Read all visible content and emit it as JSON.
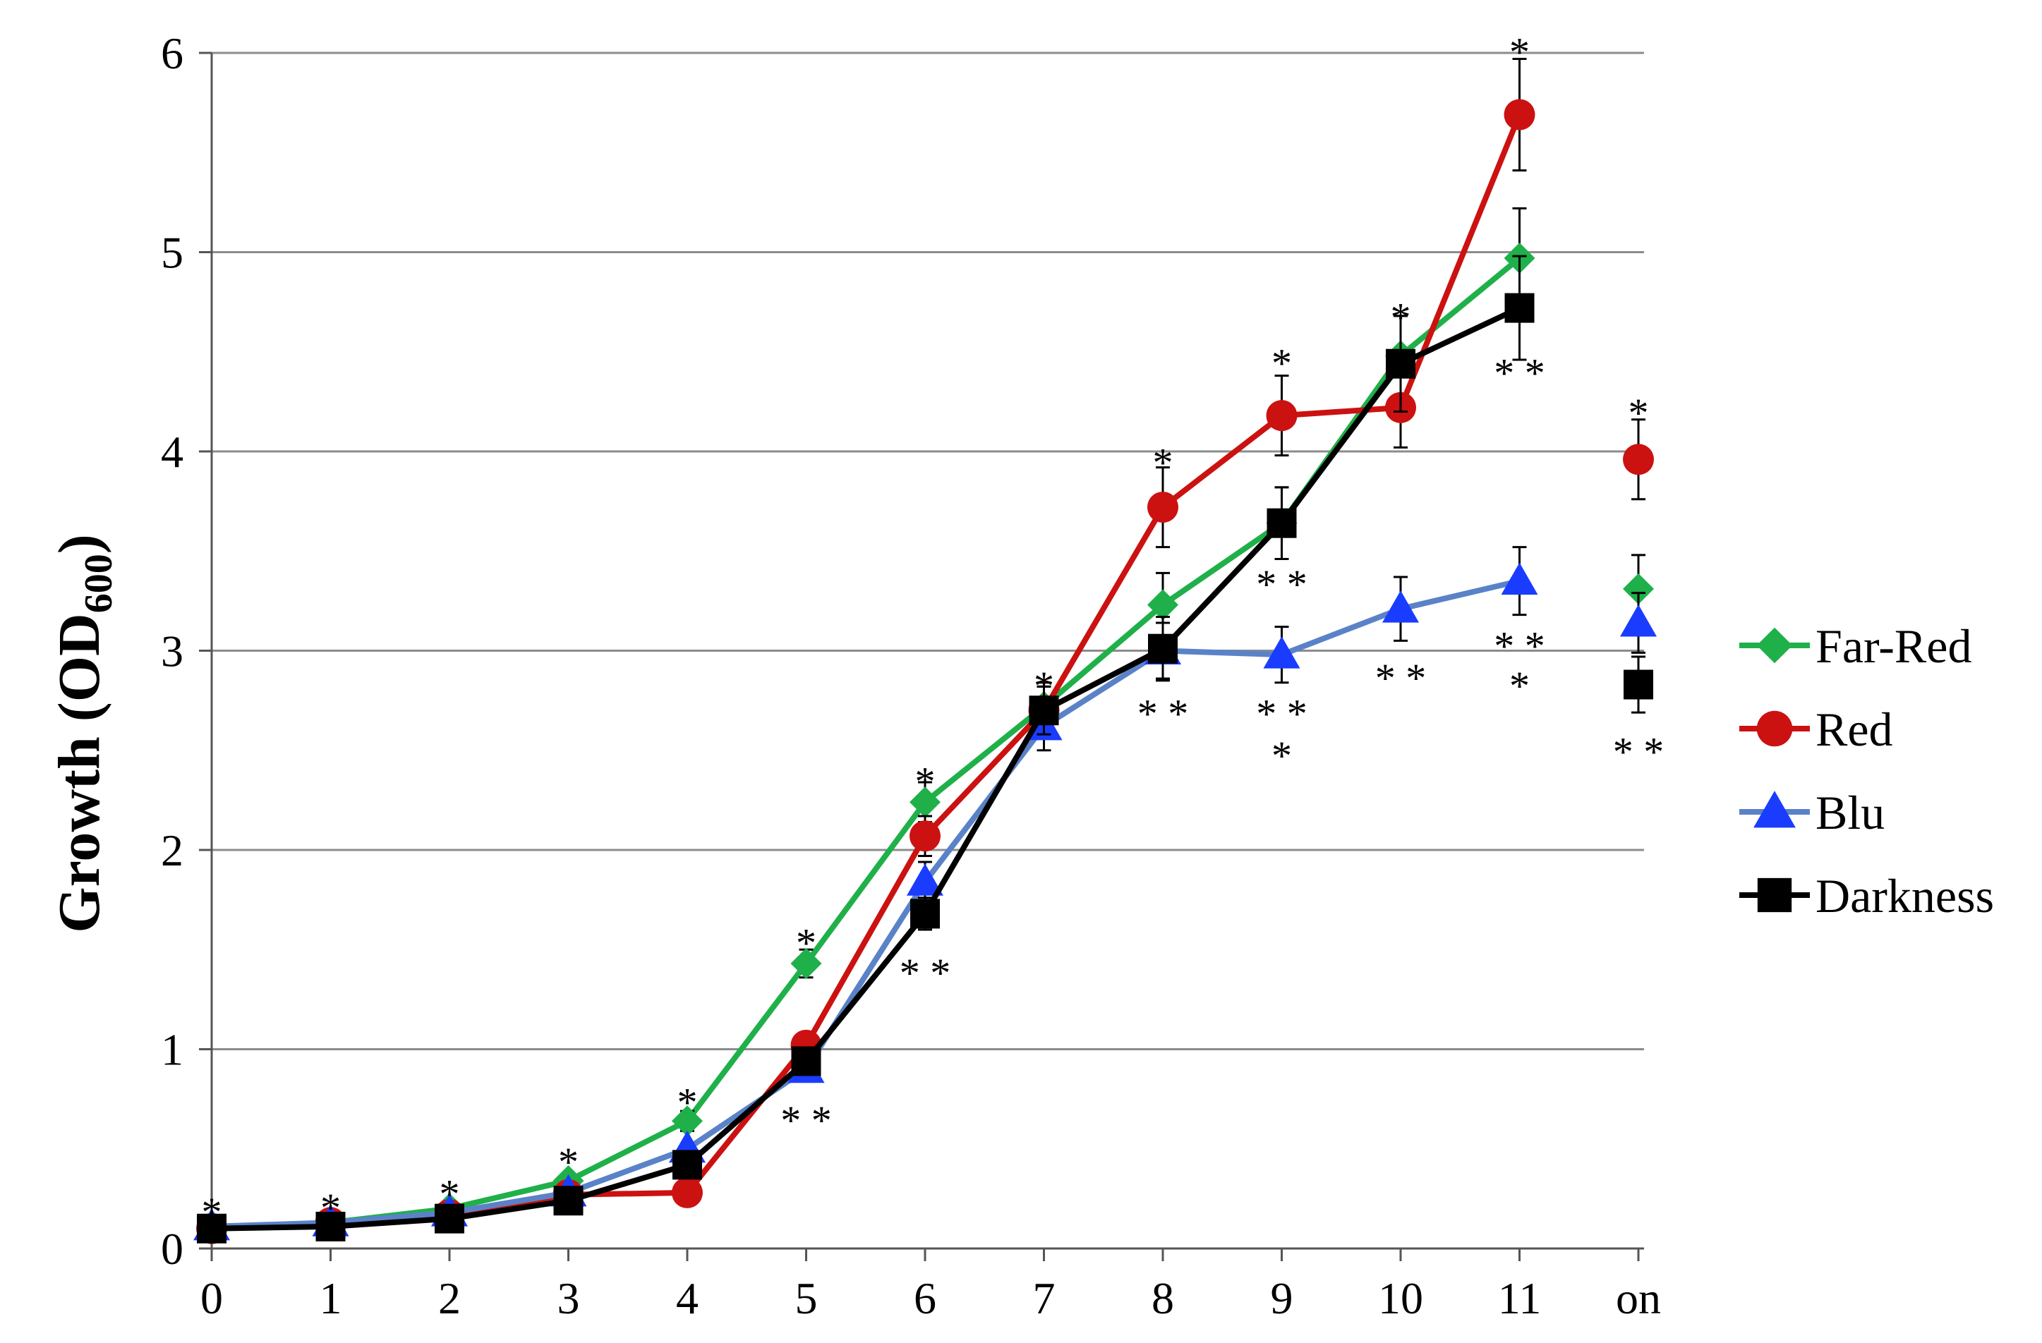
{
  "chart_data": {
    "type": "line",
    "ylabel": "Growth (OD",
    "ylabel_sub": "600",
    "ylabel_close": ")",
    "xlabel": "",
    "categories": [
      "0",
      "1",
      "2",
      "3",
      "4",
      "5",
      "6",
      "7",
      "8",
      "9",
      "10",
      "11",
      "on"
    ],
    "ylim": [
      0,
      6
    ],
    "yticks": [
      0,
      1,
      2,
      3,
      4,
      5,
      6
    ],
    "grid": true,
    "legend_position": "right",
    "series": [
      {
        "name": "Far-Red",
        "color": "#1fb04a",
        "marker": "diamond",
        "values": [
          0.1,
          0.13,
          0.2,
          0.34,
          0.64,
          1.43,
          2.24,
          2.72,
          3.23,
          3.64,
          4.48,
          4.97,
          3.31
        ],
        "errors": [
          0.02,
          0.02,
          0.02,
          0.03,
          0.05,
          0.07,
          0.1,
          0.12,
          0.16,
          0.18,
          0.2,
          0.25,
          0.17
        ],
        "connect_last": false
      },
      {
        "name": "Red",
        "color": "#cc1111",
        "marker": "circle",
        "values": [
          0.1,
          0.13,
          0.17,
          0.27,
          0.28,
          1.02,
          2.07,
          2.7,
          3.72,
          4.18,
          4.22,
          5.69,
          3.96
        ],
        "errors": [
          0.02,
          0.02,
          0.02,
          0.03,
          0.03,
          0.06,
          0.1,
          0.12,
          0.2,
          0.2,
          0.2,
          0.28,
          0.2
        ],
        "connect_last": false
      },
      {
        "name": "Blu",
        "color": "#1a3cff",
        "line_color": "#5a82c8",
        "marker": "triangle",
        "values": [
          0.11,
          0.13,
          0.18,
          0.28,
          0.5,
          0.9,
          1.84,
          2.62,
          3.0,
          2.98,
          3.21,
          3.35,
          3.14
        ],
        "errors": [
          0.02,
          0.02,
          0.02,
          0.03,
          0.04,
          0.05,
          0.1,
          0.12,
          0.14,
          0.14,
          0.16,
          0.17,
          0.15
        ],
        "connect_last": false
      },
      {
        "name": "Darkness",
        "color": "#000000",
        "marker": "square",
        "values": [
          0.1,
          0.11,
          0.15,
          0.24,
          0.42,
          0.94,
          1.68,
          2.7,
          3.01,
          3.64,
          4.44,
          4.72,
          2.83
        ],
        "errors": [
          0.02,
          0.02,
          0.02,
          0.03,
          0.04,
          0.05,
          0.08,
          0.12,
          0.16,
          0.18,
          0.24,
          0.26,
          0.14
        ],
        "connect_last": false
      }
    ],
    "annotations": [
      {
        "x": 0,
        "y": 0.22,
        "text": "*"
      },
      {
        "x": 1,
        "y": 0.24,
        "text": "*"
      },
      {
        "x": 2,
        "y": 0.31,
        "text": "*"
      },
      {
        "x": 3,
        "y": 0.47,
        "text": "*"
      },
      {
        "x": 4,
        "y": 0.77,
        "text": "*"
      },
      {
        "x": 5,
        "y": 1.57,
        "text": "*"
      },
      {
        "x": 5,
        "y": 0.68,
        "text": "* *"
      },
      {
        "x": 6,
        "y": 2.38,
        "text": "*"
      },
      {
        "x": 6,
        "y": 1.42,
        "text": "* *"
      },
      {
        "x": 7,
        "y": 2.86,
        "text": "*"
      },
      {
        "x": 8,
        "y": 3.98,
        "text": "*"
      },
      {
        "x": 8,
        "y": 2.72,
        "text": "* *"
      },
      {
        "x": 9,
        "y": 4.48,
        "text": "*"
      },
      {
        "x": 9,
        "y": 3.37,
        "text": "* *"
      },
      {
        "x": 9,
        "y": 2.72,
        "text": "* *"
      },
      {
        "x": 9,
        "y": 2.51,
        "text": "*"
      },
      {
        "x": 10,
        "y": 4.71,
        "text": "*"
      },
      {
        "x": 10,
        "y": 2.9,
        "text": "* *"
      },
      {
        "x": 11,
        "y": 6.04,
        "text": "*"
      },
      {
        "x": 11,
        "y": 4.43,
        "text": "* *"
      },
      {
        "x": 11,
        "y": 3.06,
        "text": "* *"
      },
      {
        "x": 11,
        "y": 2.86,
        "text": "*"
      },
      {
        "x": 12,
        "y": 4.23,
        "text": "*"
      },
      {
        "x": 12,
        "y": 2.53,
        "text": "* *"
      }
    ]
  }
}
